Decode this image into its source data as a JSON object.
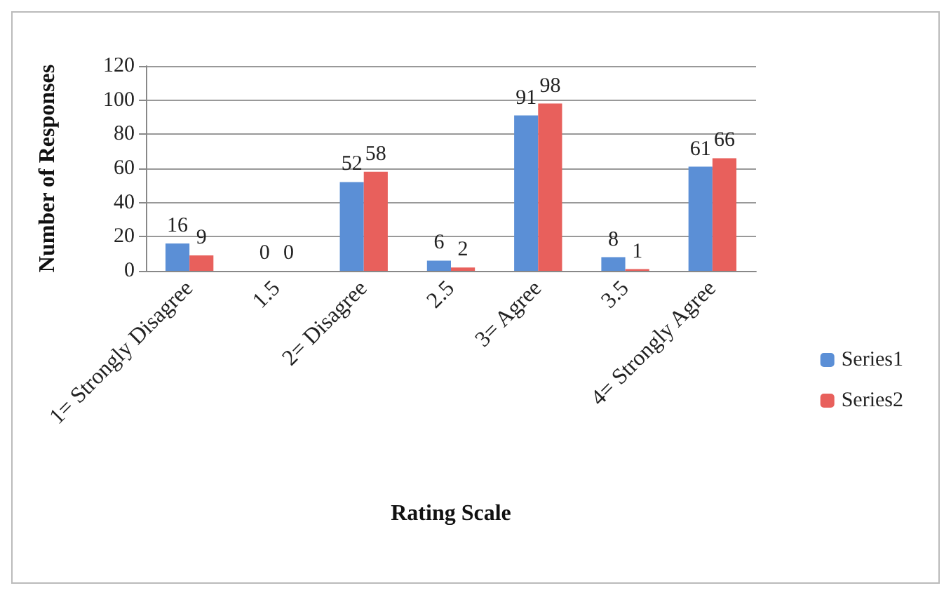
{
  "chart_data": {
    "type": "bar",
    "xlabel": "Rating Scale",
    "ylabel": "Number of Responses",
    "categories": [
      "1= Strongly Disagree",
      "1.5",
      "2= Disagree",
      "2.5",
      "3= Agree",
      "3.5",
      "4= Strongly Agree"
    ],
    "series": [
      {
        "name": "Series1",
        "color": "#5b8fd6",
        "values": [
          16,
          0,
          52,
          6,
          91,
          8,
          61
        ]
      },
      {
        "name": "Series2",
        "color": "#e8605c",
        "values": [
          9,
          0,
          58,
          2,
          98,
          1,
          66
        ]
      }
    ],
    "ylim": [
      0,
      120
    ],
    "yticks": [
      0,
      20,
      40,
      60,
      80,
      100,
      120
    ],
    "grid": "y",
    "legend": "right",
    "data_labels": true
  }
}
